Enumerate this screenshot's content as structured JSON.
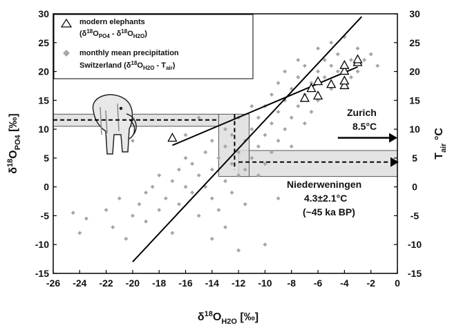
{
  "chart_data": {
    "type": "scatter",
    "xlabel": [
      "δ",
      "18",
      "O",
      "H2O",
      " [‰]"
    ],
    "ylabel": [
      "δ",
      "18",
      "O",
      "PO4",
      " [‰]"
    ],
    "y2label": [
      "T",
      "air",
      " °C"
    ],
    "xlim": [
      -26,
      0
    ],
    "xticks": [
      -26,
      -24,
      -22,
      -20,
      -18,
      -16,
      -14,
      -12,
      -10,
      -8,
      -6,
      -4,
      -2,
      0
    ],
    "ylim": [
      -15,
      30
    ],
    "yticks": [
      -15,
      -10,
      -5,
      0,
      5,
      10,
      15,
      20,
      25,
      30
    ],
    "y2lim": [
      -15,
      30
    ],
    "y2ticks": [
      -15,
      -10,
      -5,
      0,
      5,
      10,
      15,
      20,
      25,
      30
    ],
    "series": [
      {
        "name": "modern elephants",
        "legend_detail": [
          "(δ",
          "18",
          "O",
          "PO4",
          " - δ",
          "18",
          "O",
          "H2O",
          ")"
        ],
        "color": "#000000",
        "marker": "triangle",
        "x": [
          -17,
          -7,
          -6,
          -6,
          -5,
          -4,
          -4,
          -4,
          -4,
          -3,
          -3,
          -6.5
        ],
        "y": [
          8.4,
          15.3,
          15.7,
          18.2,
          17.7,
          17.5,
          18.3,
          20,
          21,
          21.5,
          22,
          17
        ]
      },
      {
        "name": "monthly mean precipitation",
        "legend_detail": [
          "Switzerland (δ",
          "18",
          "O",
          "H2O",
          " - T",
          "air",
          ")"
        ],
        "color": "#a6a6a6",
        "marker": "diamond",
        "x": [
          -24.5,
          -24,
          -23.5,
          -22,
          -21.5,
          -21,
          -20.5,
          -20,
          -19.5,
          -19,
          -19,
          -18.5,
          -18,
          -18,
          -17.5,
          -17,
          -17,
          -16.5,
          -16.5,
          -16,
          -16,
          -15.5,
          -15.5,
          -15,
          -15,
          -14.5,
          -14.5,
          -14,
          -14,
          -14,
          -13.5,
          -13.5,
          -13,
          -13,
          -13,
          -12.5,
          -12.5,
          -12.5,
          -12,
          -12,
          -12,
          -11.5,
          -11.5,
          -11.5,
          -11,
          -11,
          -11,
          -10.5,
          -10.5,
          -10.5,
          -10,
          -10,
          -10,
          -10,
          -9.5,
          -9.5,
          -9.5,
          -9,
          -9,
          -9,
          -8.5,
          -8.5,
          -8.5,
          -8,
          -8,
          -8,
          -7.5,
          -7.5,
          -7.5,
          -7,
          -7,
          -7,
          -6.5,
          -6.5,
          -6,
          -6,
          -6,
          -5.5,
          -5.5,
          -5,
          -5,
          -5,
          -4.5,
          -4.5,
          -4,
          -4,
          -3.5,
          -3.5,
          -3,
          -3,
          -2.5,
          -2,
          -1.5,
          -14,
          -12,
          -15,
          -16,
          -9,
          -20,
          -13
        ],
        "y": [
          -4.5,
          -8,
          -5.5,
          -4,
          -7,
          -2,
          -9,
          -5,
          -3,
          -1,
          -6,
          0,
          -4,
          2,
          -2,
          1,
          -8,
          3,
          -3,
          0,
          5,
          -1,
          4,
          2,
          -5,
          6,
          0,
          3,
          -2,
          8,
          5,
          -4,
          1,
          7,
          10,
          4,
          -1,
          9,
          6,
          2,
          12,
          8,
          3,
          -3,
          10,
          5,
          14,
          7,
          12,
          2,
          9,
          14,
          4,
          -10,
          11,
          16,
          6,
          13,
          8,
          18,
          15,
          10,
          20,
          12,
          17,
          7,
          14,
          19,
          22,
          16,
          11,
          21,
          18,
          13,
          20,
          24,
          15,
          19,
          22,
          17,
          25,
          21,
          20,
          23,
          18,
          26,
          22,
          19,
          24,
          20,
          22,
          23,
          21,
          -9,
          -11,
          12,
          9,
          -2,
          8,
          -7
        ]
      }
    ],
    "lines": [
      {
        "x": [
          -20,
          -2.7
        ],
        "y": [
          -13,
          29.5
        ]
      },
      {
        "x": [
          -17,
          -3
        ],
        "y": [
          7.2,
          20.8
        ]
      }
    ],
    "bands": [
      {
        "x": [
          -26,
          -13.5
        ],
        "y": [
          10.5,
          12.6
        ],
        "dashed_y": 11.6
      },
      {
        "x": [
          -12,
          0
        ],
        "y": [
          1.8,
          6.3
        ],
        "dashed_y": 4.3
      },
      {
        "x": [
          -13.5,
          -11.2
        ],
        "y": [
          1.8,
          12.6
        ],
        "dashed_x": -12.3
      }
    ],
    "zurich_arrow": {
      "x": [
        -4.5,
        0
      ],
      "y": 8.5
    },
    "annotations": [
      "Zurich",
      "8.5°C",
      "Niederweningen",
      "4.3±2.1°C",
      "(~45 ka BP)"
    ]
  }
}
